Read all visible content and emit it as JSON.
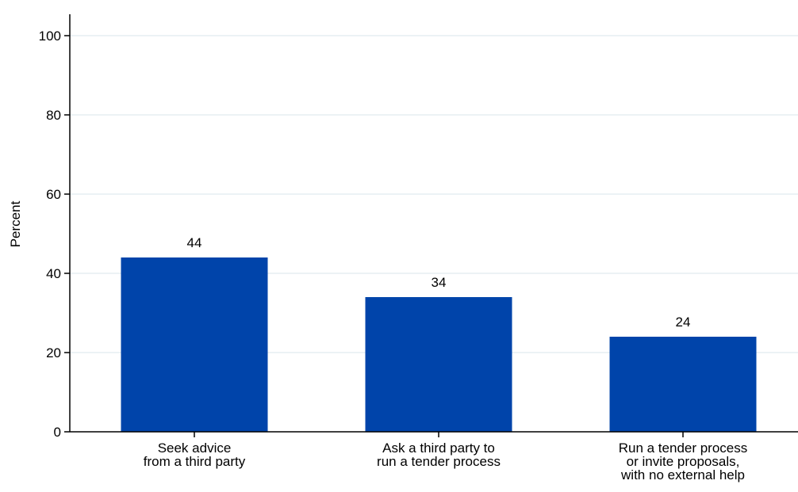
{
  "chart_data": {
    "type": "bar",
    "title": "",
    "xlabel": "",
    "ylabel": "Percent",
    "ylim": [
      0,
      100
    ],
    "yticks": [
      0,
      20,
      40,
      60,
      80,
      100
    ],
    "grid": true,
    "categories": [
      [
        "Seek advice",
        "from a third party"
      ],
      [
        "Ask a third party to",
        "run a tender process"
      ],
      [
        "Run a tender process",
        "or invite proposals,",
        "with no external help"
      ]
    ],
    "values": [
      44,
      34,
      24
    ],
    "colors": {
      "bar": "#0044AA",
      "grid": "#E6EEF2",
      "axis": "#000000"
    }
  }
}
